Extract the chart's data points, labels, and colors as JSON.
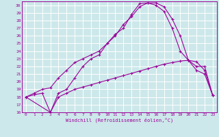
{
  "title": "",
  "xlabel": "Windchill (Refroidissement éolien,°C)",
  "bg_color": "#cde8ea",
  "grid_color": "#ffffff",
  "line_color": "#990099",
  "xlim": [
    -0.5,
    23.5
  ],
  "ylim": [
    16,
    30.5
  ],
  "xticks": [
    0,
    1,
    2,
    3,
    4,
    5,
    6,
    7,
    8,
    9,
    10,
    11,
    12,
    13,
    14,
    15,
    16,
    17,
    18,
    19,
    20,
    21,
    22,
    23
  ],
  "yticks": [
    16,
    17,
    18,
    19,
    20,
    21,
    22,
    23,
    24,
    25,
    26,
    27,
    28,
    29,
    30
  ],
  "curve1_x": [
    0,
    1,
    2,
    3,
    4,
    5,
    6,
    7,
    8,
    9,
    10,
    11,
    12,
    13,
    14,
    15,
    16,
    17,
    18,
    19,
    20,
    21,
    22,
    23
  ],
  "curve1_y": [
    18.0,
    18.3,
    18.5,
    16.0,
    18.0,
    18.5,
    19.0,
    19.3,
    19.6,
    19.9,
    20.2,
    20.5,
    20.8,
    21.1,
    21.4,
    21.7,
    22.0,
    22.3,
    22.5,
    22.7,
    22.8,
    22.6,
    21.5,
    18.2
  ],
  "curve2_x": [
    0,
    1,
    2,
    3,
    4,
    5,
    6,
    7,
    8,
    9,
    10,
    11,
    12,
    13,
    14,
    15,
    16,
    17,
    18,
    19,
    20,
    21,
    22,
    23
  ],
  "curve2_y": [
    18.0,
    18.5,
    19.0,
    19.2,
    20.5,
    21.5,
    22.5,
    23.0,
    23.5,
    24.0,
    25.0,
    26.2,
    27.0,
    28.8,
    30.2,
    30.3,
    30.0,
    29.2,
    27.0,
    24.0,
    22.8,
    21.5,
    21.0,
    18.2
  ],
  "curve3_x": [
    0,
    3,
    4,
    5,
    6,
    7,
    8,
    9,
    10,
    11,
    12,
    13,
    14,
    15,
    16,
    17,
    18,
    19,
    20,
    21,
    22,
    23
  ],
  "curve3_y": [
    18.0,
    16.0,
    18.5,
    19.0,
    20.5,
    22.0,
    23.0,
    23.5,
    25.0,
    26.0,
    27.5,
    28.5,
    29.8,
    30.3,
    30.3,
    29.8,
    28.2,
    26.0,
    22.8,
    22.0,
    22.0,
    18.2
  ]
}
